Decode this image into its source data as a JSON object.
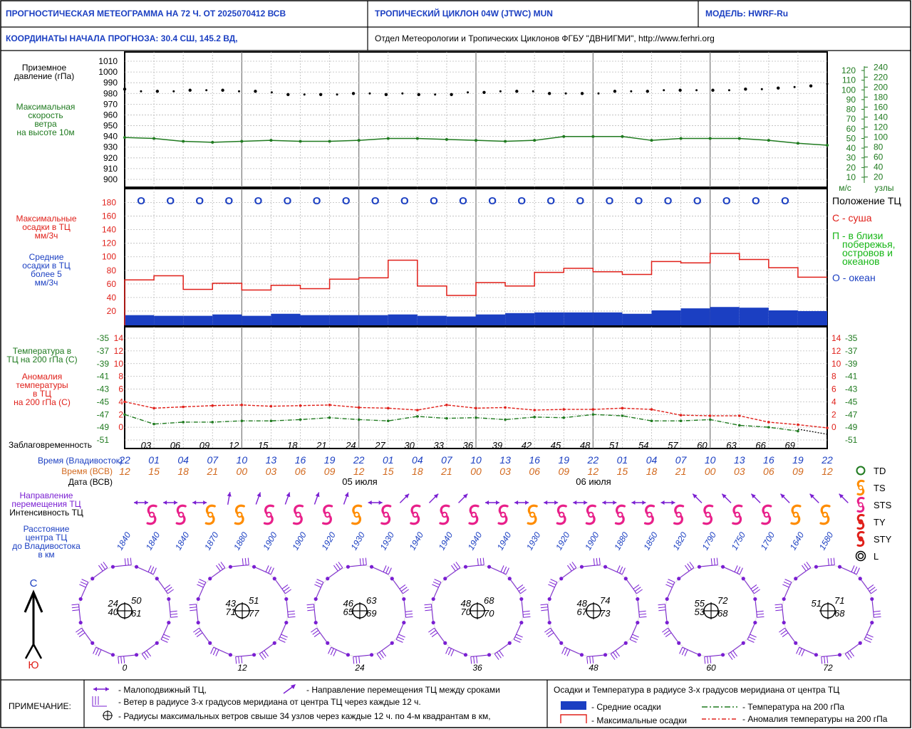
{
  "header": {
    "title": "ПРОГНОСТИЧЕСКАЯ МЕТЕОГРАММА НА 72 Ч. ОТ 2025070412 ВСВ",
    "cyclone": "ТРОПИЧЕСКИЙ ЦИКЛОН  04W  (JTWC)   MUN",
    "model": "МОДЕЛЬ:   HWRF-Ru",
    "coords": "КООРДИНАТЫ НАЧАЛА ПРОГНОЗА:  30.4  СШ,   145.2  ВД,",
    "org": "Отдел Метеорологии и Тропических Циклонов ФГБУ \"ДВНИГМИ\",   http://www.ferhri.org"
  },
  "labels": {
    "pressure": [
      "Приземное",
      "давление (гПа)"
    ],
    "wind": [
      "Максимальная",
      "скорость",
      "ветра",
      "на высоте 10м"
    ],
    "max_precip": [
      "Максимальные",
      "осадки в ТЦ",
      "мм/3ч"
    ],
    "mean_precip": [
      "Средние",
      "осадки в ТЦ",
      "более 5",
      "мм/3ч"
    ],
    "temp200": [
      "Температура в",
      "ТЦ на 200 гПа (С)"
    ],
    "anomaly": [
      "Аномалия",
      "температуры",
      "в ТЦ",
      "на 200 гПа (С)"
    ],
    "lead": "Заблаговременность",
    "time_vl": "Время (Владивосток)",
    "time_utc": "Время (ВСВ)",
    "date_utc": "Дата (ВСВ)",
    "direction": [
      "Направление",
      "перемещения ТЦ"
    ],
    "intensity": "Интенсивность ТЦ",
    "distance": [
      "Расстояние",
      "центра ТЦ",
      "до Владивостока",
      "в км"
    ],
    "pos_title": "Положение ТЦ",
    "pos_land": "С - суша",
    "pos_coast": [
      "П - в близи",
      "побережья,",
      "островов и",
      "океанов"
    ],
    "pos_ocean": "О - океан",
    "unit_ms": "м/с",
    "unit_kt": "узлы",
    "north": "С",
    "south": "Ю"
  },
  "legend_right": [
    {
      "code": "TD",
      "color": "#1f7a1f"
    },
    {
      "code": "TS",
      "color": "#ff8c00"
    },
    {
      "code": "STS",
      "color": "#e8208a"
    },
    {
      "code": "TY",
      "color": "#e0201a"
    },
    {
      "code": "STY",
      "color": "#e0201a"
    },
    {
      "code": "L",
      "color": "#000000"
    }
  ],
  "footer": {
    "note_label": "ПРИМЕЧАНИЕ:",
    "slow": "- Малоподвижный ТЦ,",
    "direction": "- Направление перемещения ТЦ между сроками",
    "wind3": "- Ветер в радиусе 3-х градусов меридиана от центра ТЦ через каждые 12 ч.",
    "radii": "- Радиусы максимальных ветров свыше 34 узлов через каждые 12 ч. по 4-м квадрантам в км,",
    "precip_title": "Осадки и Температура в радиусе 3-х градусов меридиана от центра ТЦ",
    "mean_precip": "- Средние осадки",
    "max_precip": "- Максимальные осадки",
    "temp": "- Температура на 200 гПа",
    "anom": "- Аномалия температуры на 200 гПа"
  },
  "colors": {
    "blue": "#1b3fc2",
    "green": "#1f7a1f",
    "red": "#e0201a",
    "orange": "#d2691e",
    "purple": "#7a1fd2",
    "pink": "#e8208a",
    "ts": "#ff8c00"
  },
  "chart_data": {
    "type": "line",
    "lead_hours": [
      "03",
      "06",
      "09",
      "12",
      "15",
      "18",
      "21",
      "24",
      "27",
      "30",
      "33",
      "36",
      "39",
      "42",
      "45",
      "48",
      "51",
      "54",
      "57",
      "60",
      "63",
      "66",
      "69"
    ],
    "time_vladivostok": [
      "22",
      "01",
      "04",
      "07",
      "10",
      "13",
      "16",
      "19",
      "22",
      "01",
      "04",
      "07",
      "10",
      "13",
      "16",
      "19",
      "22",
      "01",
      "04",
      "07",
      "10",
      "13",
      "16",
      "19",
      "22"
    ],
    "time_utc": [
      "12",
      "15",
      "18",
      "21",
      "00",
      "03",
      "06",
      "09",
      "12",
      "15",
      "18",
      "21",
      "00",
      "03",
      "06",
      "09",
      "12",
      "15",
      "18",
      "21",
      "00",
      "03",
      "06",
      "09",
      "12"
    ],
    "dates": [
      "05 июля",
      "06 июля"
    ],
    "pressure": {
      "yticks": [
        900,
        910,
        920,
        930,
        940,
        950,
        960,
        970,
        980,
        990,
        1000,
        1010
      ],
      "ylim": [
        895,
        1015
      ],
      "values": [
        984,
        982,
        982,
        982,
        983,
        983,
        983,
        982,
        982,
        981,
        979,
        979,
        979,
        979,
        980,
        980,
        979,
        980,
        979,
        979,
        979,
        981,
        981,
        982,
        982,
        982,
        980,
        980,
        980,
        980,
        982,
        982,
        982,
        983,
        983,
        983,
        983,
        983,
        984,
        984,
        985,
        986,
        987,
        989
      ]
    },
    "wind": {
      "ms_ticks": [
        10,
        20,
        30,
        40,
        50,
        60,
        70,
        80,
        90,
        100,
        110,
        120
      ],
      "kt_ticks": [
        20,
        40,
        60,
        80,
        100,
        120,
        140,
        160,
        180,
        200,
        220,
        240
      ],
      "values": [
        51,
        50,
        47,
        46,
        47,
        48,
        47,
        47,
        48,
        50,
        50,
        49,
        48,
        47,
        48,
        52,
        52,
        52,
        48,
        50,
        50,
        50,
        48,
        45,
        43
      ]
    },
    "precip": {
      "yticks": [
        20,
        40,
        60,
        80,
        100,
        120,
        140,
        160,
        180
      ],
      "ylim": [
        0,
        190
      ],
      "max": [
        66,
        72,
        52,
        61,
        51,
        58,
        53,
        67,
        69,
        95,
        57,
        43,
        62,
        57,
        77,
        83,
        78,
        74,
        93,
        91,
        105,
        96,
        84,
        70
      ],
      "mean": [
        14,
        13,
        13,
        15,
        13,
        16,
        14,
        14,
        14,
        15,
        13,
        12,
        15,
        17,
        18,
        18,
        18,
        16,
        21,
        24,
        26,
        25,
        21,
        20
      ]
    },
    "position": [
      "О",
      "О",
      "О",
      "О",
      "О",
      "О",
      "О",
      "О",
      "О",
      "О",
      "О",
      "О",
      "О",
      "О",
      "О",
      "О",
      "О",
      "О",
      "О",
      "О",
      "О",
      "О",
      "О"
    ],
    "temperature": {
      "left_ticks": [
        "-35",
        "-37",
        "-39",
        "-41",
        "-43",
        "-45",
        "-47",
        "-49",
        "-51"
      ],
      "anom_ticks": [
        "14",
        "12",
        "10",
        "8",
        "6",
        "4",
        "2",
        "0"
      ],
      "right_anom": [
        "14",
        "12",
        "10",
        "8",
        "6",
        "4",
        "2",
        "0"
      ],
      "right_temp": [
        "-35",
        "-37",
        "-39",
        "-41",
        "-43",
        "-45",
        "-47",
        "-49",
        "-51"
      ],
      "temp200": [
        -47,
        -48.5,
        -48.2,
        -48.2,
        -48,
        -48,
        -47.8,
        -47.5,
        -47.8,
        -48,
        -47.3,
        -47.6,
        -47.5,
        -47.8,
        -47.4,
        -47.5,
        -47,
        -47.2,
        -48,
        -48,
        -47.8,
        -48.7,
        -49,
        -49.6
      ],
      "anomaly": [
        4,
        3,
        3.2,
        3.4,
        3.5,
        3.3,
        3.4,
        3.5,
        3.1,
        3,
        2.7,
        3.5,
        3,
        3.1,
        2.7,
        2.8,
        2.8,
        3,
        2.8,
        1.9,
        1.8,
        1.8,
        0.8,
        0.4,
        -0.1
      ]
    },
    "intensity": [
      "STS",
      "STS",
      "TS",
      "TS",
      "STS",
      "STS",
      "STS",
      "TS",
      "STS",
      "STS",
      "STS",
      "STS",
      "STS",
      "TS",
      "STS",
      "STS",
      "STS",
      "STS",
      "STS",
      "STS",
      "STS",
      "STS",
      "TS",
      "TS"
    ],
    "distance_km": [
      "1840",
      "1840",
      "1840",
      "1870",
      "1880",
      "1900",
      "1900",
      "1920",
      "1930",
      "1930",
      "1940",
      "1940",
      "1940",
      "1940",
      "1930",
      "1920",
      "1900",
      "1880",
      "1850",
      "1820",
      "1790",
      "1750",
      "1700",
      "1640",
      "1580"
    ],
    "direction_deg": [
      90,
      90,
      90,
      10,
      20,
      20,
      20,
      20,
      90,
      45,
      45,
      45,
      90,
      90,
      90,
      90,
      90,
      90,
      90,
      315,
      315,
      315,
      315,
      315,
      315
    ],
    "direction_slow": [
      true,
      true,
      true,
      false,
      false,
      false,
      false,
      false,
      true,
      false,
      false,
      false,
      true,
      true,
      true,
      true,
      true,
      true,
      true,
      false,
      false,
      false,
      false,
      false,
      false
    ],
    "wind_rose": [
      {
        "lead": "0",
        "radii": [
          "24",
          "50",
          "40",
          "61"
        ]
      },
      {
        "lead": "12",
        "radii": [
          "43",
          "51",
          "71",
          "77"
        ]
      },
      {
        "lead": "24",
        "radii": [
          "46",
          "63",
          "65",
          "69"
        ]
      },
      {
        "lead": "36",
        "radii": [
          "48",
          "68",
          "70",
          "70"
        ]
      },
      {
        "lead": "48",
        "radii": [
          "48",
          "74",
          "67",
          "73"
        ]
      },
      {
        "lead": "60",
        "radii": [
          "55",
          "72",
          "53",
          "68"
        ]
      },
      {
        "lead": "72",
        "radii": [
          "51",
          "71",
          "",
          "68"
        ]
      }
    ]
  }
}
